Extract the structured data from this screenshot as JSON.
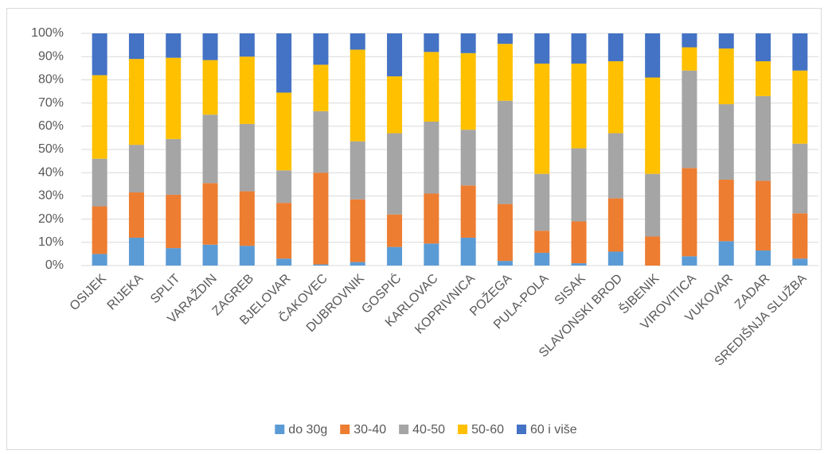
{
  "chart_data": {
    "type": "stacked_bar",
    "categories": [
      "OSIJEK",
      "RIJEKA",
      "SPLIT",
      "VARAŽDIN",
      "ZAGREB",
      "BJELOVAR",
      "ČAKOVEC",
      "DUBROVNIK",
      "GOSPIĆ",
      "KARLOVAC",
      "KOPRIVNICA",
      "POŽEGA",
      "PULA-POLA",
      "SISAK",
      "SLAVONSKI BROD",
      "ŠIBENIK",
      "VIROVITICA",
      "VUKOVAR",
      "ZADAR",
      "SREDIŠNJA SLUŽBA"
    ],
    "series": [
      {
        "name": "do 30g",
        "color": "#5b9bd5",
        "values": [
          5,
          12,
          7.5,
          9,
          8.5,
          3,
          0.5,
          1.5,
          8,
          9.5,
          12,
          2,
          5.5,
          1,
          6,
          0,
          4,
          10.5,
          6.5,
          3
        ]
      },
      {
        "name": "30-40",
        "color": "#ed7d31",
        "values": [
          20.5,
          19.5,
          23,
          26.5,
          23.5,
          24,
          39.5,
          27,
          14,
          21.5,
          22.5,
          24.5,
          9.5,
          18,
          23,
          12.5,
          38,
          26.5,
          30,
          19.5
        ]
      },
      {
        "name": "40-50",
        "color": "#a5a5a5",
        "values": [
          20.5,
          20.5,
          24,
          29.5,
          29,
          14,
          26.5,
          25,
          35,
          31,
          24,
          44.5,
          24.5,
          31.5,
          28,
          27,
          42,
          32.5,
          36.5,
          30
        ]
      },
      {
        "name": "50-60",
        "color": "#ffc000",
        "values": [
          36,
          37,
          35,
          23.5,
          29,
          33.5,
          20,
          39.5,
          24.5,
          30,
          33,
          24.5,
          47.5,
          36.5,
          31,
          41.5,
          10,
          24,
          15,
          31.5
        ]
      },
      {
        "name": "60 i više",
        "color": "#4472c4",
        "values": [
          18,
          11,
          10.5,
          11.5,
          10,
          25.5,
          13.5,
          7,
          18.5,
          8,
          8.5,
          4.5,
          13,
          13,
          12,
          19,
          6,
          6.5,
          12,
          16
        ]
      }
    ],
    "ylim": [
      0,
      100
    ],
    "yticks": [
      {
        "value": 0,
        "label": "0%"
      },
      {
        "value": 10,
        "label": "10%"
      },
      {
        "value": 20,
        "label": "20%"
      },
      {
        "value": 30,
        "label": "30%"
      },
      {
        "value": 40,
        "label": "40%"
      },
      {
        "value": 50,
        "label": "50%"
      },
      {
        "value": 60,
        "label": "60%"
      },
      {
        "value": 70,
        "label": "70%"
      },
      {
        "value": 80,
        "label": "80%"
      },
      {
        "value": 90,
        "label": "90%"
      },
      {
        "value": 100,
        "label": "100%"
      }
    ],
    "grid": true,
    "legend": "bottom"
  }
}
